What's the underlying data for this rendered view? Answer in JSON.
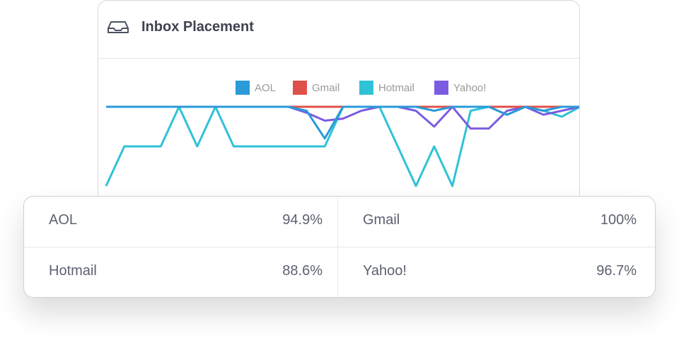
{
  "header": {
    "title": "Inbox Placement"
  },
  "chart_data": {
    "type": "line",
    "x": [
      0,
      1,
      2,
      3,
      4,
      5,
      6,
      7,
      8,
      9,
      10,
      11,
      12,
      13,
      14,
      15,
      16,
      17,
      18,
      19,
      20,
      21,
      22,
      23,
      24,
      25,
      26
    ],
    "xlim": [
      0,
      26
    ],
    "ylim": [
      50,
      100
    ],
    "legend": "top",
    "series": [
      {
        "name": "Hotmail",
        "color": "#2fc2d6",
        "values": [
          80,
          90,
          90,
          90,
          100,
          90,
          100,
          90,
          90,
          90,
          90,
          90,
          90,
          100,
          100,
          100,
          90,
          80,
          90,
          80,
          99,
          100,
          98,
          100,
          99,
          97.5,
          100
        ]
      },
      {
        "name": "Yahoo!",
        "color": "#7b5ce0",
        "values": [
          100,
          100,
          100,
          100,
          100,
          100,
          100,
          100,
          100,
          100,
          100,
          98.5,
          96.5,
          97,
          99,
          100,
          100,
          99,
          95,
          100,
          94.5,
          94.5,
          99,
          100,
          98,
          99,
          100
        ]
      },
      {
        "name": "Gmail",
        "color": "#e0504a",
        "values": [
          100,
          100,
          100,
          100,
          100,
          100,
          100,
          100,
          100,
          100,
          100,
          100,
          100,
          100,
          100,
          100,
          100,
          100,
          100,
          100,
          100,
          100,
          100,
          100,
          100,
          100,
          100
        ]
      },
      {
        "name": "AOL",
        "color": "#2a9ad8",
        "values": [
          100,
          100,
          100,
          100,
          100,
          100,
          100,
          100,
          100,
          100,
          100,
          99,
          92,
          100,
          100,
          100,
          100,
          100,
          99,
          100,
          100,
          100,
          98,
          100,
          99,
          100,
          100
        ]
      }
    ]
  },
  "table": {
    "rows": [
      [
        {
          "label": "AOL",
          "value": "94.9%"
        },
        {
          "label": "Gmail",
          "value": "100%"
        }
      ],
      [
        {
          "label": "Hotmail",
          "value": "88.6%"
        },
        {
          "label": "Yahoo!",
          "value": "96.7%"
        }
      ]
    ]
  }
}
